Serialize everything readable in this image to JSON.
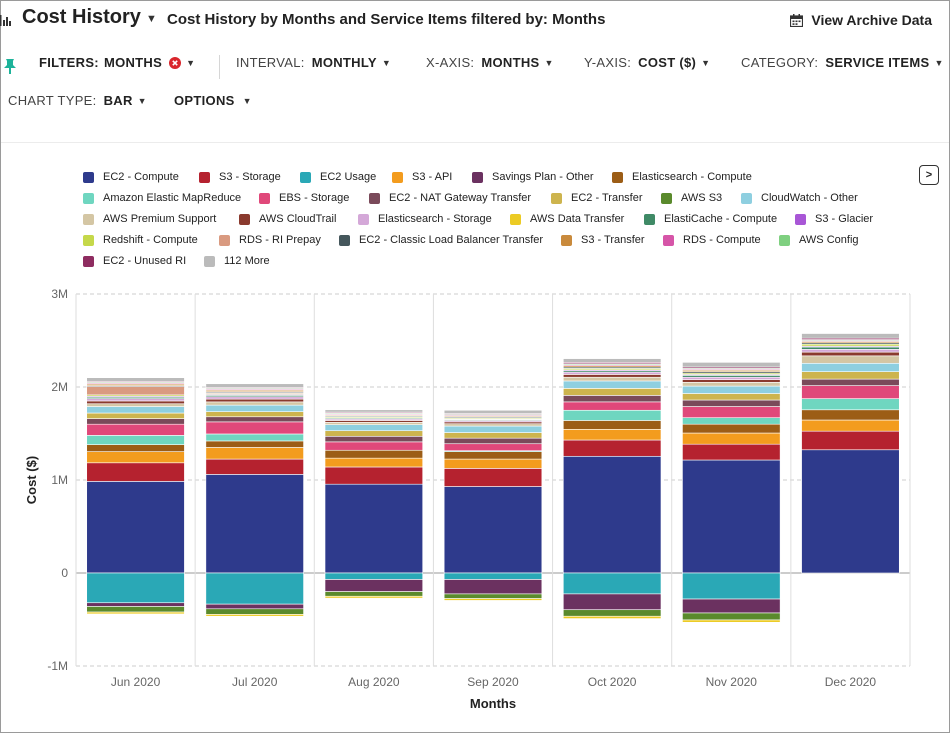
{
  "header": {
    "app_title": "Cost History",
    "subtitle": "Cost History by Months and Service Items filtered by: Months",
    "archive_label": "View Archive Data"
  },
  "controls": {
    "filters": {
      "label": "FILTERS:",
      "value": "MONTHS"
    },
    "interval": {
      "label": "INTERVAL:",
      "value": "MONTHLY"
    },
    "x_axis": {
      "label": "X-AXIS:",
      "value": "MONTHS"
    },
    "y_axis": {
      "label": "Y-AXIS:",
      "value": "COST ($)"
    },
    "category": {
      "label": "CATEGORY:",
      "value": "SERVICE ITEMS"
    },
    "chart_type": {
      "label": "CHART TYPE:",
      "value": "BAR"
    },
    "options": {
      "label": "OPTIONS"
    }
  },
  "legend_next_label": ">",
  "colors": {
    "pin": "#1db39a",
    "clear": "#d9262c",
    "grid": "#cccccc",
    "zero_line": "#999999"
  },
  "chart_data": {
    "type": "bar",
    "stacked": true,
    "xlabel": "Months",
    "ylabel": "Cost ($)",
    "ylim": [
      -1000000,
      3000000
    ],
    "yticks": [
      -1000000,
      0,
      1000000,
      2000000,
      3000000
    ],
    "ytick_labels": [
      "-1M",
      "0",
      "1M",
      "2M",
      "3M"
    ],
    "grid": true,
    "legend_position": "top",
    "categories": [
      "Jun 2020",
      "Jul 2020",
      "Aug 2020",
      "Sep 2020",
      "Oct 2020",
      "Nov 2020",
      "Dec 2020"
    ],
    "series": [
      {
        "name": "EC2 - Compute",
        "color": "#2e3a8c",
        "values": [
          985000,
          1060000,
          955000,
          930000,
          1255000,
          1215000,
          1325000
        ]
      },
      {
        "name": "S3 - Storage",
        "color": "#b5222f",
        "values": [
          200000,
          165000,
          185000,
          195000,
          175000,
          170000,
          200000
        ]
      },
      {
        "name": "EC2 Usage",
        "color": "#2aa8b6",
        "values": [
          -320000,
          -335000,
          -70000,
          -70000,
          -225000,
          -280000,
          0
        ]
      },
      {
        "name": "S3 - API",
        "color": "#f39c1e",
        "values": [
          120000,
          125000,
          95000,
          100000,
          115000,
          120000,
          120000
        ]
      },
      {
        "name": "Savings Plan - Other",
        "color": "#6b3160",
        "values": [
          -40000,
          -50000,
          -130000,
          -155000,
          -170000,
          -150000,
          0
        ]
      },
      {
        "name": "Elasticsearch - Compute",
        "color": "#9c5d16",
        "values": [
          75000,
          70000,
          85000,
          80000,
          95000,
          95000,
          110000
        ]
      },
      {
        "name": "Amazon Elastic MapReduce",
        "color": "#6fd6c0",
        "values": [
          100000,
          75000,
          0,
          10000,
          110000,
          70000,
          120000
        ]
      },
      {
        "name": "EBS - Storage",
        "color": "#e0487a",
        "values": [
          120000,
          130000,
          90000,
          75000,
          90000,
          120000,
          140000
        ]
      },
      {
        "name": "EC2 - NAT Gateway Transfer",
        "color": "#7a4a5a",
        "values": [
          60000,
          55000,
          60000,
          60000,
          70000,
          70000,
          70000
        ]
      },
      {
        "name": "EC2 - Transfer",
        "color": "#cdb44e",
        "values": [
          60000,
          55000,
          60000,
          60000,
          75000,
          70000,
          80000
        ]
      },
      {
        "name": "AWS S3",
        "color": "#5a8a2c",
        "values": [
          -60000,
          -60000,
          -50000,
          -50000,
          -70000,
          -75000,
          0
        ]
      },
      {
        "name": "CloudWatch - Other",
        "color": "#8ecfe0",
        "values": [
          70000,
          70000,
          65000,
          70000,
          80000,
          80000,
          90000
        ]
      },
      {
        "name": "AWS Premium Support",
        "color": "#d4c6a4",
        "values": [
          30000,
          35000,
          25000,
          25000,
          40000,
          40000,
          80000
        ]
      },
      {
        "name": "AWS CloudTrail",
        "color": "#8a3a2e",
        "values": [
          30000,
          30000,
          20000,
          20000,
          30000,
          30000,
          40000
        ]
      },
      {
        "name": "Elasticsearch - Storage",
        "color": "#d4a8d8",
        "values": [
          25000,
          25000,
          15000,
          15000,
          25000,
          25000,
          30000
        ]
      },
      {
        "name": "AWS Data Transfer",
        "color": "#eccb24",
        "values": [
          -20000,
          -20000,
          -20000,
          -20000,
          -25000,
          -25000,
          0
        ]
      },
      {
        "name": "ElastiCache - Compute",
        "color": "#3f8a66",
        "values": [
          15000,
          15000,
          10000,
          10000,
          15000,
          20000,
          25000
        ]
      },
      {
        "name": "S3 - Glacier",
        "color": "#a856d6",
        "values": [
          10000,
          10000,
          5000,
          5000,
          10000,
          10000,
          10000
        ]
      },
      {
        "name": "Redshift - Compute",
        "color": "#c5d84a",
        "values": [
          15000,
          10000,
          10000,
          10000,
          15000,
          15000,
          20000
        ]
      },
      {
        "name": "RDS - RI Prepay",
        "color": "#d99a80",
        "values": [
          90000,
          10000,
          0,
          0,
          0,
          0,
          0
        ]
      },
      {
        "name": "EC2 - Classic Load Balancer Transfer",
        "color": "#45575c",
        "values": [
          10000,
          10000,
          10000,
          10000,
          15000,
          15000,
          15000
        ]
      },
      {
        "name": "S3 - Transfer",
        "color": "#c98a3c",
        "values": [
          15000,
          15000,
          10000,
          10000,
          15000,
          15000,
          15000
        ]
      },
      {
        "name": "RDS - Compute",
        "color": "#d655a8",
        "values": [
          10000,
          10000,
          10000,
          10000,
          10000,
          10000,
          10000
        ]
      },
      {
        "name": "AWS Config",
        "color": "#7fd080",
        "values": [
          10000,
          10000,
          10000,
          10000,
          10000,
          10000,
          10000
        ]
      },
      {
        "name": "EC2 - Unused RI",
        "color": "#8e2c60",
        "values": [
          10000,
          10000,
          10000,
          10000,
          15000,
          15000,
          15000
        ]
      },
      {
        "name": "112 More",
        "color": "#bbbbbb",
        "values": [
          40000,
          40000,
          25000,
          35000,
          40000,
          50000,
          50000
        ]
      }
    ]
  }
}
